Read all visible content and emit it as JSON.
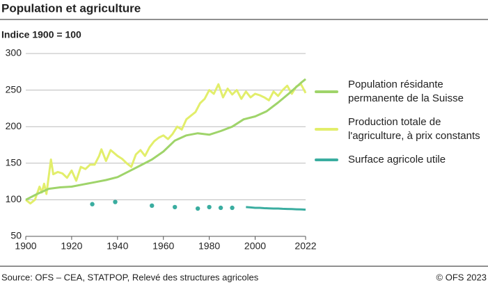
{
  "chart_data": {
    "type": "line",
    "title": "Population et agriculture",
    "subtitle": "Indice 1900 = 100",
    "source": "Source: OFS – CEA, STATPOP, Relevé des structures agricoles",
    "copyright": "© OFS 2023",
    "xlim": [
      1900,
      2022
    ],
    "xticks": [
      1900,
      1920,
      1940,
      1960,
      1980,
      2000,
      2022
    ],
    "ylim": [
      50,
      300
    ],
    "yticks": [
      50,
      100,
      150,
      200,
      250,
      300
    ],
    "grid": true,
    "series": [
      {
        "name": "Population résidante permanente de la Suisse",
        "color": "#9fd46a",
        "x": [
          1900,
          1905,
          1910,
          1915,
          1920,
          1925,
          1930,
          1935,
          1940,
          1945,
          1950,
          1955,
          1960,
          1965,
          1970,
          1975,
          1980,
          1985,
          1990,
          1995,
          2000,
          2005,
          2010,
          2015,
          2020,
          2022
        ],
        "values": [
          100,
          108,
          115,
          117,
          118,
          121,
          124,
          127,
          131,
          139,
          147,
          155,
          166,
          181,
          188,
          191,
          189,
          194,
          200,
          210,
          214,
          221,
          233,
          246,
          260,
          265
        ]
      },
      {
        "name": "Production totale de l'agriculture, à prix constants",
        "color": "#e2ee6b",
        "x": [
          1900,
          1902,
          1904,
          1906,
          1907,
          1908,
          1909,
          1911,
          1912,
          1914,
          1916,
          1918,
          1920,
          1922,
          1924,
          1926,
          1928,
          1930,
          1932,
          1933,
          1935,
          1937,
          1940,
          1942,
          1944,
          1946,
          1948,
          1950,
          1952,
          1954,
          1956,
          1958,
          1960,
          1962,
          1964,
          1966,
          1968,
          1970,
          1972,
          1974,
          1976,
          1978,
          1980,
          1982,
          1984,
          1986,
          1988,
          1990,
          1992,
          1994,
          1996,
          1998,
          2000,
          2002,
          2004,
          2006,
          2008,
          2010,
          2012,
          2014,
          2016,
          2018,
          2020,
          2022
        ],
        "values": [
          100,
          95,
          100,
          118,
          110,
          122,
          108,
          155,
          135,
          138,
          136,
          130,
          140,
          126,
          145,
          142,
          148,
          148,
          160,
          169,
          153,
          168,
          160,
          156,
          150,
          145,
          162,
          168,
          160,
          172,
          180,
          185,
          188,
          183,
          190,
          200,
          196,
          210,
          215,
          220,
          232,
          238,
          250,
          245,
          258,
          240,
          252,
          244,
          250,
          238,
          248,
          240,
          245,
          243,
          240,
          236,
          248,
          242,
          250,
          256,
          245,
          255,
          258,
          246
        ]
      },
      {
        "name": "Surface agricole utile",
        "color": "#3aada0",
        "x": [
          1929,
          null,
          1939,
          null,
          1955,
          null,
          1965,
          null,
          1975,
          null,
          1980,
          null,
          1985,
          null,
          1990,
          null,
          1996,
          1998,
          2000,
          2002,
          2004,
          2006,
          2008,
          2010,
          2012,
          2014,
          2016,
          2018,
          2020,
          2022
        ],
        "values": [
          94,
          null,
          97,
          null,
          92,
          null,
          90,
          null,
          88,
          null,
          90,
          null,
          89,
          null,
          89,
          null,
          90,
          89.5,
          89,
          89,
          88.5,
          88.2,
          88,
          88,
          87.6,
          87.5,
          87.3,
          87,
          86.8,
          86.5
        ]
      }
    ]
  }
}
